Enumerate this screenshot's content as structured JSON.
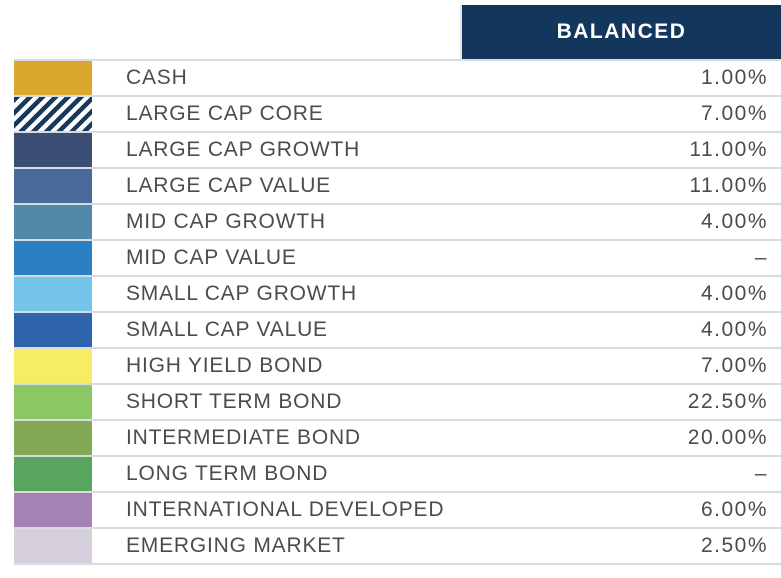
{
  "chart_data": {
    "type": "table",
    "title": "",
    "column_header": "BALANCED",
    "categories": [
      "CASH",
      "LARGE CAP CORE",
      "LARGE CAP GROWTH",
      "LARGE CAP VALUE",
      "MID CAP GROWTH",
      "MID CAP VALUE",
      "SMALL CAP GROWTH",
      "SMALL CAP VALUE",
      "HIGH YIELD BOND",
      "SHORT TERM BOND",
      "INTERMEDIATE BOND",
      "LONG TERM BOND",
      "INTERNATIONAL DEVELOPED",
      "EMERGING MARKET"
    ],
    "values_percent": [
      1.0,
      7.0,
      11.0,
      11.0,
      4.0,
      null,
      4.0,
      4.0,
      7.0,
      22.5,
      20.0,
      null,
      6.0,
      2.5
    ],
    "values_display": [
      "1.00%",
      "7.00%",
      "11.00%",
      "11.00%",
      "4.00%",
      "–",
      "4.00%",
      "4.00%",
      "7.00%",
      "22.50%",
      "20.00%",
      "–",
      "6.00%",
      "2.50%"
    ],
    "legend_position": "left-swatch-column",
    "grid": "horizontal-separators"
  },
  "table": {
    "column_header": "BALANCED",
    "rows": [
      {
        "name": "cash",
        "label": "CASH",
        "value": "1.00%",
        "swatch_type": "solid",
        "swatch_color": "#DCA72F"
      },
      {
        "name": "large-cap-core",
        "label": "LARGE CAP CORE",
        "value": "7.00%",
        "swatch_type": "hatch",
        "swatch_color": "#17395E"
      },
      {
        "name": "large-cap-growth",
        "label": "LARGE CAP GROWTH",
        "value": "11.00%",
        "swatch_type": "solid",
        "swatch_color": "#3B4E74"
      },
      {
        "name": "large-cap-value",
        "label": "LARGE CAP VALUE",
        "value": "11.00%",
        "swatch_type": "solid",
        "swatch_color": "#4A6A9B"
      },
      {
        "name": "mid-cap-growth",
        "label": "MID CAP GROWTH",
        "value": "4.00%",
        "swatch_type": "solid",
        "swatch_color": "#5289A8"
      },
      {
        "name": "mid-cap-value",
        "label": "MID CAP VALUE",
        "value": "–",
        "swatch_type": "solid",
        "swatch_color": "#2B80C4"
      },
      {
        "name": "small-cap-growth",
        "label": "SMALL CAP GROWTH",
        "value": "4.00%",
        "swatch_type": "solid",
        "swatch_color": "#74C4E9"
      },
      {
        "name": "small-cap-value",
        "label": "SMALL CAP VALUE",
        "value": "4.00%",
        "swatch_type": "solid",
        "swatch_color": "#2F64AD"
      },
      {
        "name": "high-yield-bond",
        "label": "HIGH YIELD BOND",
        "value": "7.00%",
        "swatch_type": "solid",
        "swatch_color": "#F6ED64"
      },
      {
        "name": "short-term-bond",
        "label": "SHORT TERM BOND",
        "value": "22.50%",
        "swatch_type": "solid",
        "swatch_color": "#8CC765"
      },
      {
        "name": "intermediate-bond",
        "label": "INTERMEDIATE BOND",
        "value": "20.00%",
        "swatch_type": "solid",
        "swatch_color": "#83A956"
      },
      {
        "name": "long-term-bond",
        "label": "LONG TERM BOND",
        "value": "–",
        "swatch_type": "solid",
        "swatch_color": "#58A560"
      },
      {
        "name": "international-developed",
        "label": "INTERNATIONAL DEVELOPED",
        "value": "6.00%",
        "swatch_type": "solid",
        "swatch_color": "#A383B6"
      },
      {
        "name": "emerging-market",
        "label": "EMERGING MARKET",
        "value": "2.50%",
        "swatch_type": "solid",
        "swatch_color": "#D6D0DD"
      }
    ]
  },
  "colors": {
    "header_background": "#13375C",
    "header_text": "#FFFFFF",
    "body_text": "#4C4C4C",
    "separator": "#D9DCDF"
  }
}
